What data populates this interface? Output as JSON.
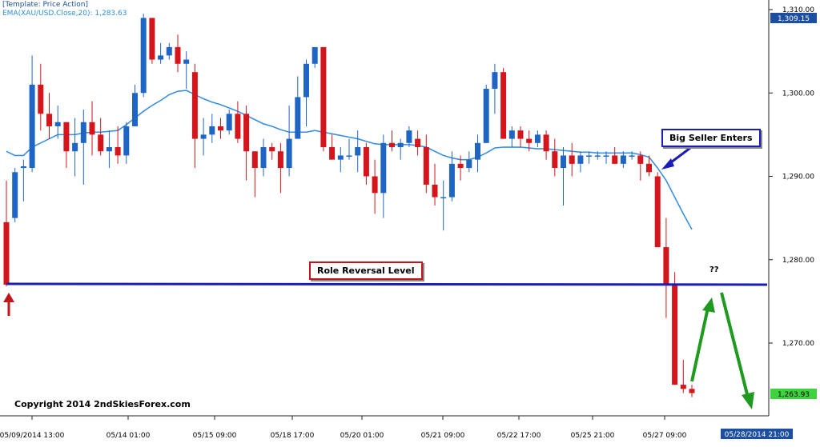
{
  "header": {
    "template": "[Template: Price Action]",
    "ema_label": "EMA(XAU/USD.Close,20): 1,283.63"
  },
  "annotations": {
    "big_seller": "Big Seller Enters",
    "role_reversal": "Role Reversal Level",
    "question": "??",
    "copyright": "Copyright 2014 2ndSkiesForex.com"
  },
  "colors": {
    "bull": "#1f66c4",
    "bear": "#d4151b",
    "ema": "#3a8fe0",
    "level_line": "#1b1db5",
    "arrow_red": "#c0151c",
    "arrow_green": "#1e9b1e",
    "price_badge_top": "#1d4fa0",
    "price_badge_last": "#3ed23e",
    "date_badge": "#1d4fa0"
  },
  "chart_data": {
    "type": "candlestick",
    "symbol": "XAU/USD",
    "y_ticks": [
      "1,310.00",
      "1,300.00",
      "1,290.00",
      "1,280.00",
      "1,270.00"
    ],
    "y_tick_values": [
      1310,
      1300,
      1290,
      1280,
      1270
    ],
    "x_ticks": [
      "05/09/2014 13:00",
      "05/14 01:00",
      "05/15 09:00",
      "05/18 17:00",
      "05/20 01:00",
      "05/21 09:00",
      "05/22 17:00",
      "05/25 21:00",
      "05/27 09:00"
    ],
    "current_price_label": "1,263.93",
    "top_price_label": "1,309.15",
    "current_date_label": "05/28/2014 21:00",
    "role_reversal_level": 1277.0,
    "ema_period": 20,
    "ema_last": 1283.63,
    "candles": [
      [
        1284.5,
        1289.5,
        1276.8,
        1289.5,
        1277.0
      ],
      [
        1285.0,
        1291.0,
        1284.5,
        1285.0,
        1290.5
      ],
      [
        1291.0,
        1292.0,
        1287.0,
        1290.8,
        1291.2
      ],
      [
        1291.0,
        1304.5,
        1290.5,
        1291.0,
        1301.0
      ],
      [
        1301.0,
        1303.5,
        1295.5,
        1301.0,
        1297.5
      ],
      [
        1297.5,
        1300.0,
        1294.5,
        1297.5,
        1296.0
      ],
      [
        1296.0,
        1298.5,
        1294.5,
        1297.5,
        1296.5
      ],
      [
        1296.5,
        1296.5,
        1291.0,
        1296.5,
        1293.0
      ],
      [
        1293.0,
        1297.0,
        1290.0,
        1294.0,
        1294.0
      ],
      [
        1294.0,
        1298.0,
        1289.0,
        1296.5,
        1296.5
      ],
      [
        1296.5,
        1299.0,
        1292.5,
        1296.5,
        1295.0
      ],
      [
        1295.0,
        1297.0,
        1292.5,
        1295.0,
        1293.0
      ],
      [
        1293.0,
        1295.5,
        1291.0,
        1293.0,
        1293.5
      ],
      [
        1293.5,
        1296.0,
        1291.5,
        1296.0,
        1292.5
      ],
      [
        1292.5,
        1296.5,
        1291.5,
        1292.5,
        1296.0
      ],
      [
        1296.0,
        1301.0,
        1296.0,
        1300.0,
        1300.0
      ],
      [
        1300.0,
        1309.5,
        1299.5,
        1309.0,
        1309.0
      ],
      [
        1309.0,
        1309.0,
        1303.5,
        1308.5,
        1304.0
      ],
      [
        1304.0,
        1306.0,
        1303.5,
        1304.5,
        1304.5
      ],
      [
        1304.5,
        1306.0,
        1304.0,
        1305.5,
        1305.5
      ],
      [
        1305.5,
        1307.0,
        1302.5,
        1305.5,
        1303.5
      ],
      [
        1303.5,
        1305.0,
        1300.5,
        1303.5,
        1304.0
      ],
      [
        1302.5,
        1303.5,
        1291.0,
        1302.5,
        1294.5
      ],
      [
        1294.5,
        1297.0,
        1292.5,
        1294.5,
        1295.0
      ],
      [
        1295.0,
        1297.5,
        1294.0,
        1295.0,
        1296.0
      ],
      [
        1296.0,
        1297.0,
        1294.5,
        1295.5,
        1295.5
      ],
      [
        1295.5,
        1298.0,
        1295.0,
        1295.5,
        1297.5
      ],
      [
        1297.5,
        1299.0,
        1294.0,
        1297.5,
        1294.5
      ],
      [
        1297.5,
        1298.5,
        1289.5,
        1297.5,
        1293.0
      ],
      [
        1293.0,
        1293.0,
        1287.5,
        1293.0,
        1291.0
      ],
      [
        1291.0,
        1294.5,
        1290.0,
        1291.0,
        1293.5
      ],
      [
        1293.5,
        1294.0,
        1292.0,
        1293.5,
        1293.0
      ],
      [
        1293.0,
        1294.0,
        1288.0,
        1293.0,
        1291.0
      ],
      [
        1291.0,
        1298.5,
        1290.0,
        1291.0,
        1294.5
      ],
      [
        1294.5,
        1302.0,
        1294.5,
        1299.5,
        1299.5
      ],
      [
        1299.5,
        1304.0,
        1296.0,
        1299.5,
        1303.5
      ],
      [
        1303.5,
        1305.5,
        1303.0,
        1303.5,
        1305.5
      ],
      [
        1305.5,
        1305.5,
        1293.0,
        1305.5,
        1293.5
      ],
      [
        1293.5,
        1295.0,
        1292.0,
        1293.5,
        1292.0
      ],
      [
        1292.0,
        1293.5,
        1290.5,
        1292.5,
        1292.5
      ],
      [
        1292.5,
        1294.5,
        1292.0,
        1292.5,
        1292.5
      ],
      [
        1292.5,
        1295.5,
        1290.5,
        1292.5,
        1293.5
      ],
      [
        1293.5,
        1294.0,
        1289.0,
        1293.5,
        1290.0
      ],
      [
        1290.0,
        1292.0,
        1285.5,
        1290.0,
        1288.0
      ],
      [
        1288.0,
        1295.0,
        1285.0,
        1288.0,
        1294.0
      ],
      [
        1294.0,
        1295.5,
        1293.0,
        1294.0,
        1293.5
      ],
      [
        1293.5,
        1294.5,
        1292.0,
        1293.5,
        1294.0
      ],
      [
        1294.0,
        1296.0,
        1293.5,
        1294.0,
        1295.5
      ],
      [
        1294.5,
        1295.5,
        1292.5,
        1294.5,
        1293.5
      ],
      [
        1293.5,
        1295.0,
        1288.0,
        1293.5,
        1289.0
      ],
      [
        1289.0,
        1291.5,
        1286.5,
        1289.0,
        1287.5
      ],
      [
        1287.5,
        1289.5,
        1283.5,
        1287.5,
        1287.5
      ],
      [
        1287.5,
        1293.0,
        1287.0,
        1287.5,
        1291.5
      ],
      [
        1291.5,
        1292.5,
        1289.5,
        1291.5,
        1291.0
      ],
      [
        1291.0,
        1293.0,
        1290.5,
        1291.0,
        1292.0
      ],
      [
        1292.0,
        1295.0,
        1290.5,
        1292.0,
        1294.0
      ],
      [
        1294.0,
        1301.0,
        1294.0,
        1294.0,
        1300.5
      ],
      [
        1300.5,
        1303.5,
        1297.5,
        1300.5,
        1302.5
      ],
      [
        1302.5,
        1303.0,
        1294.5,
        1302.5,
        1294.5
      ],
      [
        1294.5,
        1296.0,
        1293.5,
        1294.5,
        1295.5
      ],
      [
        1295.5,
        1296.0,
        1293.5,
        1294.5,
        1294.5
      ],
      [
        1294.5,
        1295.5,
        1293.0,
        1294.5,
        1294.0
      ],
      [
        1294.0,
        1295.5,
        1293.5,
        1294.0,
        1295.0
      ],
      [
        1295.0,
        1295.5,
        1292.0,
        1295.0,
        1293.0
      ],
      [
        1293.0,
        1294.5,
        1290.0,
        1293.0,
        1291.0
      ],
      [
        1291.0,
        1293.5,
        1286.5,
        1291.0,
        1292.5
      ],
      [
        1292.5,
        1294.0,
        1290.0,
        1292.5,
        1291.5
      ],
      [
        1291.5,
        1293.0,
        1290.5,
        1291.5,
        1292.5
      ],
      [
        1292.5,
        1293.0,
        1291.5,
        1292.5,
        1292.5
      ],
      [
        1292.5,
        1293.0,
        1292.0,
        1292.5,
        1292.5
      ],
      [
        1292.5,
        1293.0,
        1291.5,
        1292.5,
        1292.5
      ],
      [
        1292.5,
        1293.5,
        1291.5,
        1292.5,
        1291.5
      ],
      [
        1291.5,
        1293.0,
        1291.0,
        1291.5,
        1292.5
      ],
      [
        1292.5,
        1293.0,
        1292.0,
        1292.5,
        1292.5
      ],
      [
        1292.5,
        1293.0,
        1289.5,
        1292.5,
        1291.5
      ],
      [
        1291.5,
        1292.5,
        1290.0,
        1291.5,
        1290.5
      ],
      [
        1290.0,
        1290.5,
        1281.5,
        1290.0,
        1281.5
      ],
      [
        1281.5,
        1285.0,
        1273.0,
        1281.5,
        1277.0
      ],
      [
        1277.0,
        1278.5,
        1265.0,
        1277.0,
        1265.0
      ],
      [
        1265.0,
        1268.0,
        1264.0,
        1265.0,
        1264.5
      ],
      [
        1264.5,
        1265.0,
        1263.5,
        1264.5,
        1264.0
      ]
    ],
    "ema": [
      1293.0,
      1292.5,
      1292.5,
      1293.5,
      1294.0,
      1294.5,
      1295.0,
      1295.0,
      1295.0,
      1295.2,
      1295.3,
      1295.3,
      1295.4,
      1295.5,
      1296.2,
      1297.0,
      1297.8,
      1298.5,
      1299.1,
      1299.8,
      1300.2,
      1300.3,
      1299.8,
      1299.3,
      1298.9,
      1298.6,
      1298.2,
      1297.8,
      1297.3,
      1296.8,
      1296.3,
      1296.0,
      1295.6,
      1295.3,
      1295.3,
      1295.3,
      1295.5,
      1295.3,
      1295.1,
      1294.9,
      1294.7,
      1294.5,
      1294.2,
      1293.9,
      1293.8,
      1293.8,
      1293.8,
      1293.8,
      1293.7,
      1293.5,
      1293.0,
      1292.5,
      1292.2,
      1292.0,
      1292.0,
      1292.3,
      1292.8,
      1293.4,
      1293.5,
      1293.5,
      1293.5,
      1293.4,
      1293.3,
      1293.3,
      1293.2,
      1293.1,
      1293.0,
      1292.9,
      1292.9,
      1292.8,
      1292.8,
      1292.8,
      1292.8,
      1292.8,
      1292.6,
      1292.3,
      1291.0,
      1289.5,
      1287.5,
      1285.5,
      1283.63
    ]
  }
}
